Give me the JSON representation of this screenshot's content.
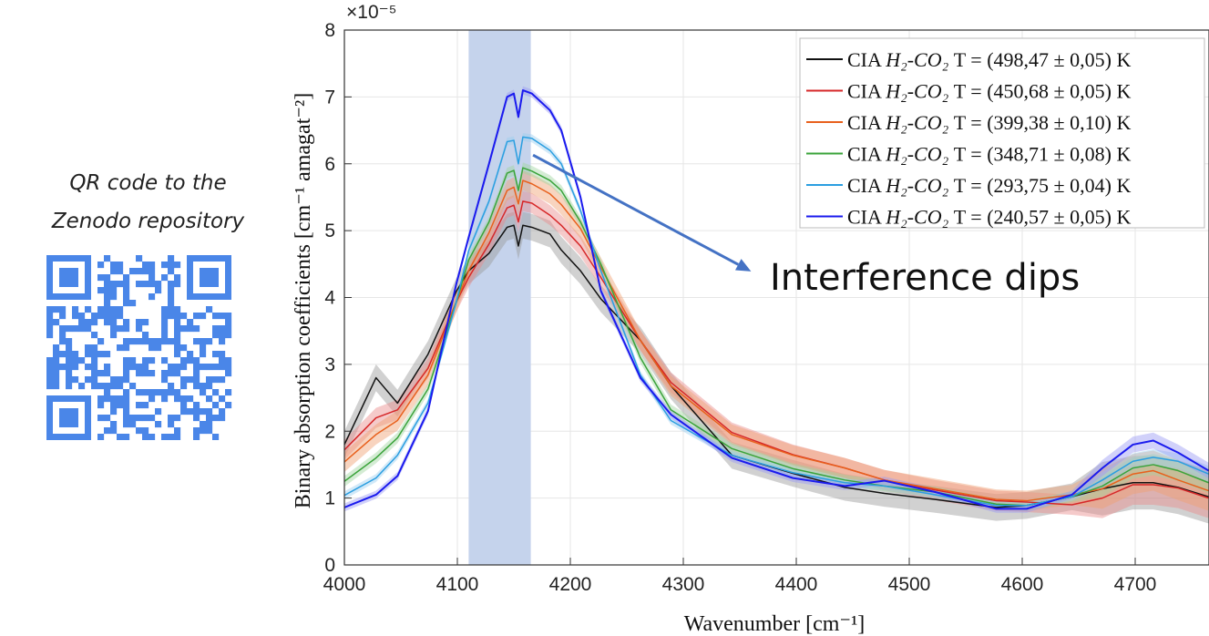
{
  "qr_panel": {
    "caption_line1": "QR code to the",
    "caption_line2": "Zenodo repository",
    "qr_color": "#4a86e8"
  },
  "chart_data": {
    "type": "line",
    "title": "",
    "xlabel": "Wavenumber [cm⁻¹]",
    "ylabel": "Binary absorption coefficients [cm⁻¹ amagat⁻²]",
    "y_exponent_label": "×10⁻⁵",
    "xlim": [
      4000,
      4775
    ],
    "ylim": [
      0,
      8
    ],
    "xticks": [
      4000,
      4100,
      4200,
      4300,
      4400,
      4500,
      4600,
      4700
    ],
    "yticks": [
      0,
      1,
      2,
      3,
      4,
      5,
      6,
      7,
      8
    ],
    "grid": true,
    "legend_position": "top-right",
    "highlight_band": {
      "x_range": [
        4110,
        4165
      ],
      "color": "#c5d3ec"
    },
    "annotation": {
      "text": "Interference dips",
      "arrow_from": [
        4167,
        6.13
      ],
      "arrow_to": [
        4360,
        4.39
      ],
      "color": "#4472c4"
    },
    "x": [
      4000,
      4028,
      4047,
      4074,
      4099,
      4110,
      4128,
      4144,
      4150,
      4154,
      4158,
      4166,
      4182,
      4192,
      4209,
      4227,
      4262,
      4289,
      4343,
      4397,
      4443,
      4478,
      4523,
      4577,
      4604,
      4644,
      4671,
      4698,
      4716,
      4738,
      4765
    ],
    "series": [
      {
        "name": "CIA",
        "species": "H₂-CO₂",
        "temperature": "T = (498,47  ±  0,05) K",
        "color": "#111111",
        "band_color": "#9a9a9a",
        "uncertainty": 0.2,
        "values": [
          1.8,
          2.8,
          2.42,
          3.15,
          4.09,
          4.4,
          4.66,
          5.05,
          5.08,
          4.77,
          5.08,
          5.05,
          4.95,
          4.71,
          4.4,
          3.98,
          3.36,
          2.68,
          1.64,
          1.37,
          1.16,
          1.07,
          0.98,
          0.86,
          0.89,
          1.02,
          1.14,
          1.23,
          1.23,
          1.16,
          1.02
        ]
      },
      {
        "name": "CIA",
        "species": "H₂-CO₂",
        "temperature": "T = (450,68  ±  0,05) K",
        "color": "#d62728",
        "band_color": "#e88a8a",
        "uncertainty": 0.15,
        "values": [
          1.72,
          2.2,
          2.32,
          2.94,
          3.93,
          4.3,
          4.8,
          5.34,
          5.38,
          5.13,
          5.44,
          5.41,
          5.23,
          5.08,
          4.77,
          4.3,
          3.36,
          2.73,
          1.98,
          1.65,
          1.45,
          1.27,
          1.12,
          0.96,
          0.94,
          0.9,
          1.0,
          1.2,
          1.2,
          1.15,
          1.0
        ]
      },
      {
        "name": "CIA",
        "species": "H₂-CO₂",
        "temperature": "T = (399,38  ±  0,10) K",
        "color": "#e8601c",
        "band_color": "#f0a070",
        "uncertainty": 0.15,
        "values": [
          1.54,
          1.95,
          2.16,
          2.84,
          3.93,
          4.4,
          4.97,
          5.6,
          5.65,
          5.4,
          5.75,
          5.7,
          5.55,
          5.39,
          5.03,
          4.45,
          3.36,
          2.68,
          1.95,
          1.64,
          1.45,
          1.27,
          1.14,
          0.98,
          0.96,
          1.05,
          1.14,
          1.36,
          1.41,
          1.27,
          1.11
        ]
      },
      {
        "name": "CIA",
        "species": "H₂-CO₂",
        "temperature": "T = (348,71  ±  0,08) K",
        "color": "#3aa33a",
        "band_color": "#9fd49f",
        "uncertainty": 0.08,
        "values": [
          1.25,
          1.6,
          1.9,
          2.63,
          3.93,
          4.56,
          5.13,
          5.86,
          5.9,
          5.6,
          5.94,
          5.89,
          5.75,
          5.6,
          5.13,
          4.5,
          3.1,
          2.32,
          1.74,
          1.44,
          1.27,
          1.18,
          1.09,
          0.91,
          0.89,
          1.02,
          1.18,
          1.45,
          1.5,
          1.41,
          1.23
        ]
      },
      {
        "name": "CIA",
        "species": "H₂-CO₂",
        "temperature": "T = (293,75  ±  0,04) K",
        "color": "#2a9ee0",
        "band_color": "#9ccff0",
        "uncertainty": 0.06,
        "values": [
          1.04,
          1.3,
          1.64,
          2.42,
          3.93,
          4.7,
          5.44,
          6.33,
          6.35,
          6.0,
          6.4,
          6.38,
          6.2,
          6.0,
          5.3,
          4.4,
          2.84,
          2.16,
          1.64,
          1.38,
          1.23,
          1.18,
          1.05,
          0.89,
          0.89,
          1.02,
          1.27,
          1.55,
          1.61,
          1.55,
          1.36
        ]
      },
      {
        "name": "CIA",
        "species": "H₂-CO₂",
        "temperature": "T = (240,57  ±  0,05) K",
        "color": "#1a1aee",
        "band_color": "#9a9af5",
        "uncertainty": 0.06,
        "values": [
          0.86,
          1.05,
          1.33,
          2.3,
          4.2,
          4.9,
          6.0,
          7.0,
          7.05,
          6.7,
          7.1,
          7.05,
          6.8,
          6.5,
          5.5,
          4.1,
          2.8,
          2.25,
          1.6,
          1.3,
          1.18,
          1.26,
          1.09,
          0.84,
          0.84,
          1.05,
          1.45,
          1.8,
          1.86,
          1.68,
          1.41
        ]
      }
    ]
  }
}
